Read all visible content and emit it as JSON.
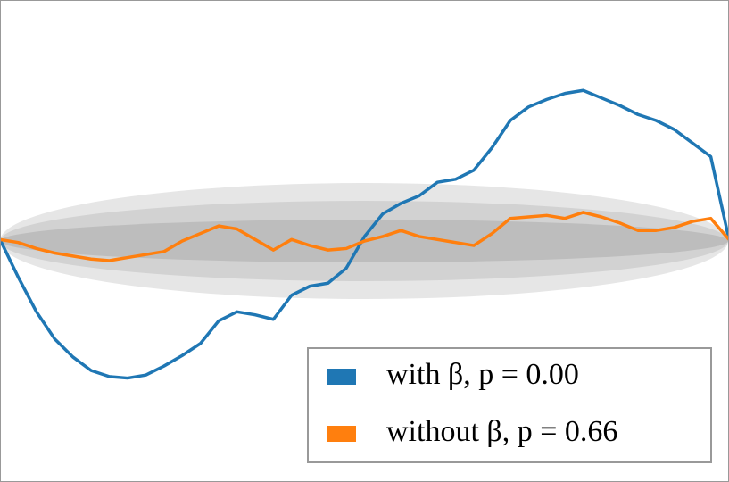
{
  "chart_data": {
    "type": "line",
    "x": [
      0,
      0.025,
      0.05,
      0.075,
      0.1,
      0.125,
      0.15,
      0.175,
      0.2,
      0.225,
      0.25,
      0.275,
      0.3,
      0.325,
      0.35,
      0.375,
      0.4,
      0.425,
      0.45,
      0.475,
      0.5,
      0.525,
      0.55,
      0.575,
      0.6,
      0.625,
      0.65,
      0.675,
      0.7,
      0.725,
      0.75,
      0.775,
      0.8,
      0.825,
      0.85,
      0.875,
      0.9,
      0.925,
      0.95,
      0.975,
      1
    ],
    "series": [
      {
        "name": "with β, p = 0.00",
        "color": "#1f77b4",
        "values": [
          0.01,
          -0.24,
          -0.47,
          -0.65,
          -0.77,
          -0.86,
          -0.9,
          -0.91,
          -0.89,
          -0.83,
          -0.76,
          -0.68,
          -0.53,
          -0.47,
          -0.49,
          -0.52,
          -0.36,
          -0.3,
          -0.28,
          -0.18,
          0.03,
          0.18,
          0.25,
          0.3,
          0.39,
          0.41,
          0.47,
          0.62,
          0.8,
          0.89,
          0.94,
          0.98,
          1.0,
          0.95,
          0.9,
          0.84,
          0.8,
          0.74,
          0.65,
          0.56,
          0.01
        ]
      },
      {
        "name": "without β, p = 0.66",
        "color": "#ff7f0e",
        "values": [
          0.01,
          -0.01,
          -0.05,
          -0.08,
          -0.1,
          -0.12,
          -0.13,
          -0.11,
          -0.09,
          -0.07,
          0.0,
          0.05,
          0.1,
          0.08,
          0.01,
          -0.06,
          0.01,
          -0.03,
          -0.06,
          -0.05,
          0.0,
          0.03,
          0.07,
          0.03,
          0.01,
          -0.01,
          -0.03,
          0.05,
          0.15,
          0.16,
          0.17,
          0.15,
          0.19,
          0.16,
          0.12,
          0.07,
          0.07,
          0.09,
          0.13,
          0.15,
          0.01
        ]
      }
    ],
    "xlim": [
      0,
      1
    ],
    "ylim": [
      -1.6,
      1.6
    ],
    "legend": "lower right"
  }
}
